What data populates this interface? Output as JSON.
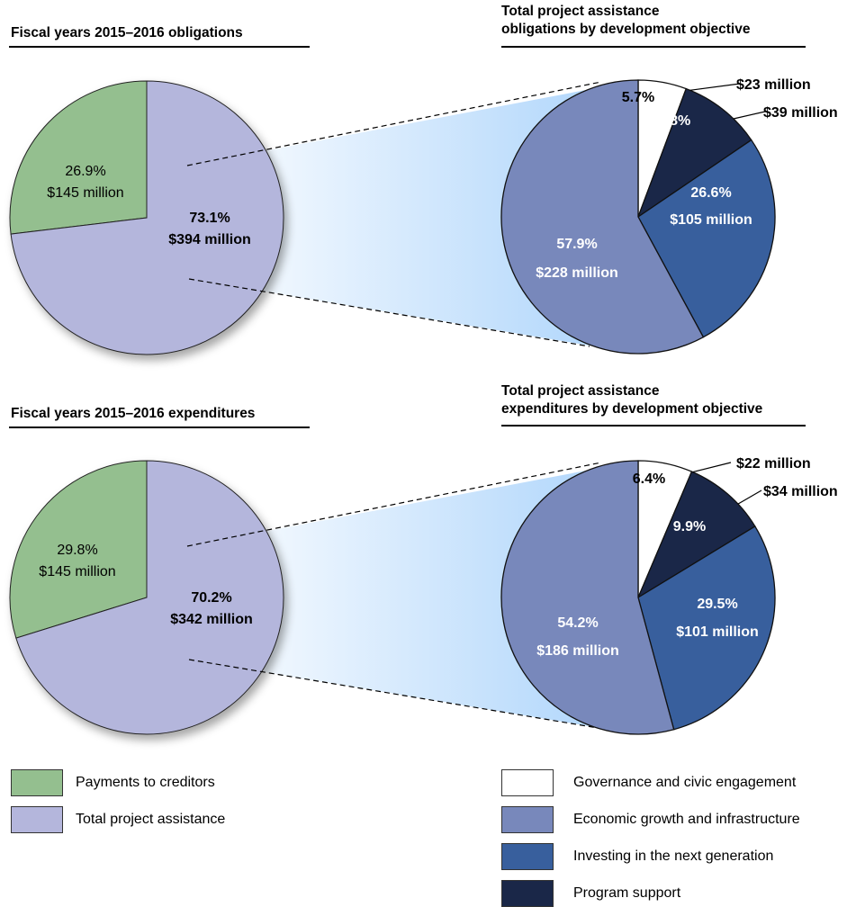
{
  "colors": {
    "payments": "#94bf8f",
    "total_project": "#b4b6dc",
    "governance": "#ffffff",
    "economic": "#7888bb",
    "investing": "#385f9d",
    "program": "#1a2748",
    "fan_gradient": "#aad3fb"
  },
  "chart_data": [
    {
      "type": "pie",
      "title": "Fiscal years 2015–2016 obligations",
      "slices": [
        {
          "category": "Payments to creditors",
          "percent": 26.9,
          "value_label": "$145 million",
          "pct_label": "26.9%",
          "color": "#94bf8f"
        },
        {
          "category": "Total project assistance",
          "percent": 73.1,
          "value_label": "$394 million",
          "pct_label": "73.1%",
          "color": "#b4b6dc"
        }
      ]
    },
    {
      "type": "pie",
      "title": "Total project assistance obligations by development objective",
      "slices": [
        {
          "category": "Governance and civic engagement",
          "percent": 5.7,
          "value_label": "$23 million",
          "pct_label": "5.7%",
          "color": "#ffffff"
        },
        {
          "category": "Program support",
          "percent": 9.8,
          "value_label": "$39 million",
          "pct_label": "9.8%",
          "color": "#1a2748"
        },
        {
          "category": "Investing in the next generation",
          "percent": 26.6,
          "value_label": "$105 million",
          "pct_label": "26.6%",
          "color": "#385f9d"
        },
        {
          "category": "Economic growth and infrastructure",
          "percent": 57.9,
          "value_label": "$228 million",
          "pct_label": "57.9%",
          "color": "#7888bb"
        }
      ]
    },
    {
      "type": "pie",
      "title": "Fiscal years 2015–2016 expenditures",
      "slices": [
        {
          "category": "Payments to creditors",
          "percent": 29.8,
          "value_label": "$145 million",
          "pct_label": "29.8%",
          "color": "#94bf8f"
        },
        {
          "category": "Total project assistance",
          "percent": 70.2,
          "value_label": "$342 million",
          "pct_label": "70.2%",
          "color": "#b4b6dc"
        }
      ]
    },
    {
      "type": "pie",
      "title": "Total project assistance expenditures by development objective",
      "slices": [
        {
          "category": "Governance and civic engagement",
          "percent": 6.4,
          "value_label": "$22 million",
          "pct_label": "6.4%",
          "color": "#ffffff"
        },
        {
          "category": "Program support",
          "percent": 9.9,
          "value_label": "$34 million",
          "pct_label": "9.9%",
          "color": "#1a2748"
        },
        {
          "category": "Investing in the next generation",
          "percent": 29.5,
          "value_label": "$101 million",
          "pct_label": "29.5%",
          "color": "#385f9d"
        },
        {
          "category": "Economic growth and infrastructure",
          "percent": 54.2,
          "value_label": "$186 million",
          "pct_label": "54.2%",
          "color": "#7888bb"
        }
      ]
    }
  ],
  "headings": {
    "obligations": "Fiscal years 2015–2016 obligations",
    "expenditures": "Fiscal years 2015–2016 expenditures",
    "tpa_obl_line1": "Total project assistance",
    "tpa_obl_line2": "obligations by development objective",
    "tpa_exp_line1": "Total project assistance",
    "tpa_exp_line2": "expenditures by development objective"
  },
  "legend_left": [
    {
      "label": "Payments to creditors",
      "color": "#94bf8f"
    },
    {
      "label": "Total project assistance",
      "color": "#b4b6dc"
    }
  ],
  "legend_right": [
    {
      "label": "Governance and civic engagement",
      "color": "#ffffff"
    },
    {
      "label": "Economic growth and infrastructure",
      "color": "#7888bb"
    },
    {
      "label": "Investing in the next generation",
      "color": "#385f9d"
    },
    {
      "label": "Program support",
      "color": "#1a2748"
    }
  ]
}
